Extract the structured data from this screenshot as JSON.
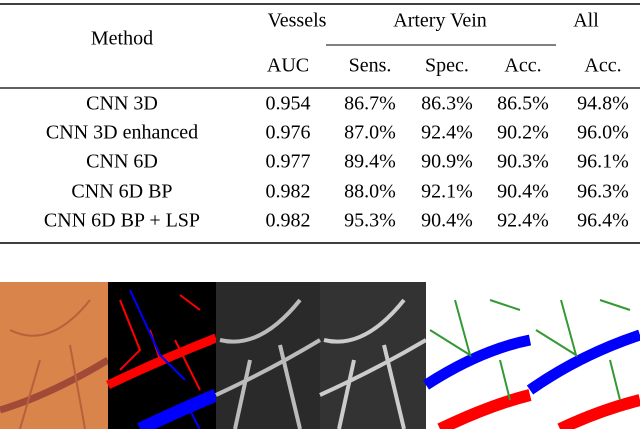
{
  "table": {
    "header": {
      "method": "Method",
      "vessels": "Vessels",
      "artery_vein": "Artery Vein",
      "all": "All",
      "columns": [
        "AUC",
        "Sens.",
        "Spec.",
        "Acc.",
        "Acc."
      ]
    },
    "rows": [
      [
        "CNN 3D",
        "0.954",
        "86.7%",
        "86.3%",
        "86.5%",
        "94.8%"
      ],
      [
        "CNN 3D enhanced",
        "0.976",
        "87.0%",
        "92.4%",
        "90.2%",
        "96.0%"
      ],
      [
        "CNN 6D",
        "0.977",
        "89.4%",
        "90.9%",
        "90.3%",
        "96.1%"
      ],
      [
        "CNN 6D BP",
        "0.982",
        "88.0%",
        "92.1%",
        "90.4%",
        "96.3%"
      ],
      [
        "CNN 6D BP + LSP",
        "0.982",
        "95.3%",
        "90.4%",
        "92.4%",
        "96.4%"
      ]
    ]
  }
}
